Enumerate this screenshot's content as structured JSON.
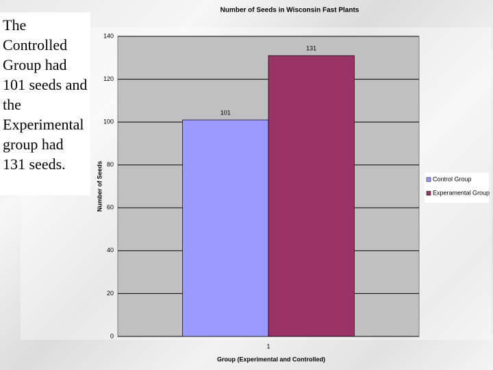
{
  "note": "The Controlled Group had 101 seeds and the Experimental group had 131 seeds.",
  "chart_data": {
    "type": "bar",
    "title": "Number of Seeds in Wisconsin Fast Plants",
    "x_label": "Group (Experimental and Controlled)",
    "y_label": "Number of Seeds",
    "categories": [
      "1"
    ],
    "series": [
      {
        "name": "Control Group",
        "color": "#9999ff",
        "values": [
          101
        ]
      },
      {
        "name": "Experamental Group",
        "color": "#993366",
        "values": [
          131
        ]
      }
    ],
    "ylim": [
      0,
      140
    ],
    "yticks": [
      0,
      20,
      40,
      60,
      80,
      100,
      120,
      140
    ],
    "grid": true,
    "legend": "right",
    "plot_color": "#c0c0c0",
    "value_labels_shown": true
  }
}
